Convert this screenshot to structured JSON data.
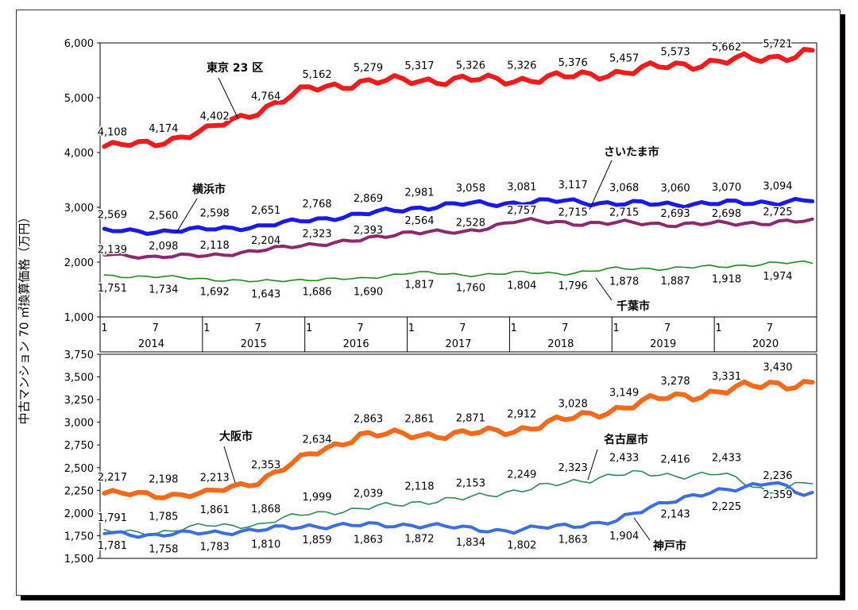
{
  "y_axis_label": "中古マンション 70 ㎡換算価格（万円）",
  "chart_data": [
    {
      "type": "line",
      "id": "top",
      "ylim": [
        1000,
        6000
      ],
      "yticks": [
        "1,000",
        "2,000",
        "3,000",
        "4,000",
        "5,000",
        "6,000"
      ],
      "ytick_values": [
        1000,
        2000,
        3000,
        4000,
        5000,
        6000
      ],
      "month_ticks": [
        "1",
        "7"
      ],
      "years": [
        "2014",
        "2015",
        "2016",
        "2017",
        "2018",
        "2019",
        "2020"
      ],
      "series": [
        {
          "name": "東京 23 区",
          "color": "#ee1c1c",
          "width": 6,
          "anchors": [
            [
              0,
              4108
            ],
            [
              6,
              4174
            ],
            [
              12,
              4402
            ],
            [
              18,
              4764
            ],
            [
              24,
              5162
            ],
            [
              30,
              5279
            ],
            [
              36,
              5317
            ],
            [
              42,
              5326
            ],
            [
              48,
              5326
            ],
            [
              54,
              5376
            ],
            [
              60,
              5457
            ],
            [
              66,
              5573
            ],
            [
              72,
              5662
            ],
            [
              78,
              5721
            ],
            [
              82,
              5830
            ]
          ],
          "labels": [
            {
              "m": 0,
              "value": "4,108"
            },
            {
              "m": 6,
              "value": "4,174"
            },
            {
              "m": 12,
              "value": "4,402"
            },
            {
              "m": 18,
              "value": "4,764"
            },
            {
              "m": 24,
              "value": "5,162"
            },
            {
              "m": 30,
              "value": "5,279"
            },
            {
              "m": 36,
              "value": "5,317"
            },
            {
              "m": 42,
              "value": "5,326"
            },
            {
              "m": 48,
              "value": "5,326"
            },
            {
              "m": 54,
              "value": "5,376"
            },
            {
              "m": 60,
              "value": "5,457"
            },
            {
              "m": 66,
              "value": "5,573"
            },
            {
              "m": 72,
              "value": "5,662"
            },
            {
              "m": 78,
              "value": "5,721"
            }
          ]
        },
        {
          "name": "さいたま市",
          "color": "#1a1ae6",
          "width": 5,
          "anchors": [
            [
              0,
              2569
            ],
            [
              6,
              2560
            ],
            [
              12,
              2598
            ],
            [
              18,
              2651
            ],
            [
              24,
              2768
            ],
            [
              30,
              2869
            ],
            [
              36,
              2981
            ],
            [
              42,
              3058
            ],
            [
              48,
              3081
            ],
            [
              54,
              3117
            ],
            [
              60,
              3068
            ],
            [
              66,
              3060
            ],
            [
              72,
              3070
            ],
            [
              78,
              3094
            ],
            [
              82,
              3120
            ]
          ],
          "labels": [
            {
              "m": 0,
              "value": "2,569"
            },
            {
              "m": 6,
              "value": "2,560"
            },
            {
              "m": 12,
              "value": "2,598"
            },
            {
              "m": 18,
              "value": "2,651"
            },
            {
              "m": 24,
              "value": "2,768"
            },
            {
              "m": 30,
              "value": "2,869"
            },
            {
              "m": 36,
              "value": "2,981"
            },
            {
              "m": 42,
              "value": "3,058"
            },
            {
              "m": 48,
              "value": "3,081"
            },
            {
              "m": 54,
              "value": "3,117"
            },
            {
              "m": 60,
              "value": "3,068"
            },
            {
              "m": 66,
              "value": "3,060"
            },
            {
              "m": 72,
              "value": "3,070"
            },
            {
              "m": 78,
              "value": "3,094"
            }
          ]
        },
        {
          "name": "横浜市",
          "color": "#8b2a6e",
          "width": 4,
          "anchors": [
            [
              0,
              2139
            ],
            [
              6,
              2098
            ],
            [
              12,
              2118
            ],
            [
              18,
              2204
            ],
            [
              24,
              2323
            ],
            [
              30,
              2393
            ],
            [
              36,
              2564
            ],
            [
              42,
              2528
            ],
            [
              48,
              2757
            ],
            [
              54,
              2715
            ],
            [
              60,
              2715
            ],
            [
              66,
              2693
            ],
            [
              72,
              2698
            ],
            [
              78,
              2725
            ],
            [
              82,
              2740
            ]
          ],
          "labels": [
            {
              "m": 0,
              "value": "2,139"
            },
            {
              "m": 6,
              "value": "2,098"
            },
            {
              "m": 12,
              "value": "2,118"
            },
            {
              "m": 18,
              "value": "2,204"
            },
            {
              "m": 24,
              "value": "2,323"
            },
            {
              "m": 30,
              "value": "2,393"
            },
            {
              "m": 36,
              "value": "2,564"
            },
            {
              "m": 42,
              "value": "2,528"
            },
            {
              "m": 48,
              "value": "2,757"
            },
            {
              "m": 54,
              "value": "2,715"
            },
            {
              "m": 60,
              "value": "2,715"
            },
            {
              "m": 66,
              "value": "2,693"
            },
            {
              "m": 72,
              "value": "2,698"
            },
            {
              "m": 78,
              "value": "2,725"
            }
          ]
        },
        {
          "name": "千葉市",
          "color": "#1f8a1f",
          "width": 1.6,
          "anchors": [
            [
              0,
              1751
            ],
            [
              6,
              1734
            ],
            [
              12,
              1692
            ],
            [
              18,
              1643
            ],
            [
              24,
              1686
            ],
            [
              30,
              1690
            ],
            [
              36,
              1817
            ],
            [
              42,
              1760
            ],
            [
              48,
              1804
            ],
            [
              54,
              1796
            ],
            [
              60,
              1878
            ],
            [
              66,
              1887
            ],
            [
              72,
              1918
            ],
            [
              78,
              1974
            ],
            [
              82,
              1990
            ]
          ],
          "labels": [
            {
              "m": 0,
              "value": "1,751"
            },
            {
              "m": 6,
              "value": "1,734"
            },
            {
              "m": 12,
              "value": "1,692"
            },
            {
              "m": 18,
              "value": "1,643"
            },
            {
              "m": 24,
              "value": "1,686"
            },
            {
              "m": 30,
              "value": "1,690"
            },
            {
              "m": 36,
              "value": "1,817"
            },
            {
              "m": 42,
              "value": "1,760"
            },
            {
              "m": 48,
              "value": "1,804"
            },
            {
              "m": 54,
              "value": "1,796"
            },
            {
              "m": 60,
              "value": "1,878"
            },
            {
              "m": 66,
              "value": "1,887"
            },
            {
              "m": 72,
              "value": "1,918"
            },
            {
              "m": 78,
              "value": "1,974"
            }
          ]
        }
      ]
    },
    {
      "type": "line",
      "id": "bottom",
      "ylim": [
        1500,
        3750
      ],
      "yticks": [
        "1,500",
        "1,750",
        "2,000",
        "2,250",
        "2,500",
        "2,750",
        "3,000",
        "3,250",
        "3,500",
        "3,750"
      ],
      "ytick_values": [
        1500,
        1750,
        2000,
        2250,
        2500,
        2750,
        3000,
        3250,
        3500,
        3750
      ],
      "series": [
        {
          "name": "大阪市",
          "color": "#f26b1d",
          "width": 6,
          "anchors": [
            [
              0,
              2217
            ],
            [
              6,
              2198
            ],
            [
              12,
              2213
            ],
            [
              18,
              2353
            ],
            [
              24,
              2634
            ],
            [
              30,
              2863
            ],
            [
              36,
              2861
            ],
            [
              42,
              2871
            ],
            [
              48,
              2912
            ],
            [
              54,
              3028
            ],
            [
              60,
              3149
            ],
            [
              66,
              3278
            ],
            [
              72,
              3331
            ],
            [
              78,
              3430
            ],
            [
              82,
              3420
            ]
          ],
          "labels": [
            {
              "m": 0,
              "value": "2,217"
            },
            {
              "m": 6,
              "value": "2,198"
            },
            {
              "m": 12,
              "value": "2,213"
            },
            {
              "m": 18,
              "value": "2,353"
            },
            {
              "m": 24,
              "value": "2,634"
            },
            {
              "m": 30,
              "value": "2,863"
            },
            {
              "m": 36,
              "value": "2,861"
            },
            {
              "m": 42,
              "value": "2,871"
            },
            {
              "m": 48,
              "value": "2,912"
            },
            {
              "m": 54,
              "value": "3,028"
            },
            {
              "m": 60,
              "value": "3,149"
            },
            {
              "m": 66,
              "value": "3,278"
            },
            {
              "m": 72,
              "value": "3,331"
            },
            {
              "m": 78,
              "value": "3,430"
            }
          ]
        },
        {
          "name": "名古屋市",
          "color": "#2e8b57",
          "width": 1.6,
          "anchors": [
            [
              0,
              1791
            ],
            [
              6,
              1785
            ],
            [
              12,
              1861
            ],
            [
              18,
              1868
            ],
            [
              24,
              1999
            ],
            [
              30,
              2039
            ],
            [
              36,
              2118
            ],
            [
              42,
              2153
            ],
            [
              48,
              2249
            ],
            [
              54,
              2323
            ],
            [
              60,
              2433
            ],
            [
              66,
              2416
            ],
            [
              72,
              2433
            ],
            [
              78,
              2236
            ],
            [
              82,
              2330
            ]
          ],
          "labels": [
            {
              "m": 0,
              "value": "1,791"
            },
            {
              "m": 6,
              "value": "1,785"
            },
            {
              "m": 12,
              "value": "1,861"
            },
            {
              "m": 18,
              "value": "1,868"
            },
            {
              "m": 24,
              "value": "1,999"
            },
            {
              "m": 30,
              "value": "2,039"
            },
            {
              "m": 36,
              "value": "2,118"
            },
            {
              "m": 42,
              "value": "2,153"
            },
            {
              "m": 48,
              "value": "2,249"
            },
            {
              "m": 54,
              "value": "2,323"
            },
            {
              "m": 60,
              "value": "2,433"
            },
            {
              "m": 66,
              "value": "2,416"
            },
            {
              "m": 72,
              "value": "2,433"
            },
            {
              "m": 78,
              "value": "2,236"
            }
          ]
        },
        {
          "name": "神戸市",
          "color": "#3b6fe0",
          "width": 4,
          "anchors": [
            [
              0,
              1781
            ],
            [
              6,
              1758
            ],
            [
              12,
              1783
            ],
            [
              18,
              1810
            ],
            [
              24,
              1859
            ],
            [
              30,
              1863
            ],
            [
              36,
              1872
            ],
            [
              42,
              1834
            ],
            [
              48,
              1802
            ],
            [
              54,
              1863
            ],
            [
              60,
              1904
            ],
            [
              66,
              2143
            ],
            [
              72,
              2225
            ],
            [
              78,
              2359
            ],
            [
              82,
              2190
            ]
          ],
          "labels": [
            {
              "m": 0,
              "value": "1,781"
            },
            {
              "m": 6,
              "value": "1,758"
            },
            {
              "m": 12,
              "value": "1,783"
            },
            {
              "m": 18,
              "value": "1,810"
            },
            {
              "m": 24,
              "value": "1,859"
            },
            {
              "m": 30,
              "value": "1,863"
            },
            {
              "m": 36,
              "value": "1,872"
            },
            {
              "m": 42,
              "value": "1,834"
            },
            {
              "m": 48,
              "value": "1,802"
            },
            {
              "m": 54,
              "value": "1,863"
            },
            {
              "m": 60,
              "value": "1,904"
            },
            {
              "m": 66,
              "value": "2,143"
            },
            {
              "m": 72,
              "value": "2,225"
            },
            {
              "m": 78,
              "value": "2,359"
            }
          ]
        }
      ]
    }
  ]
}
